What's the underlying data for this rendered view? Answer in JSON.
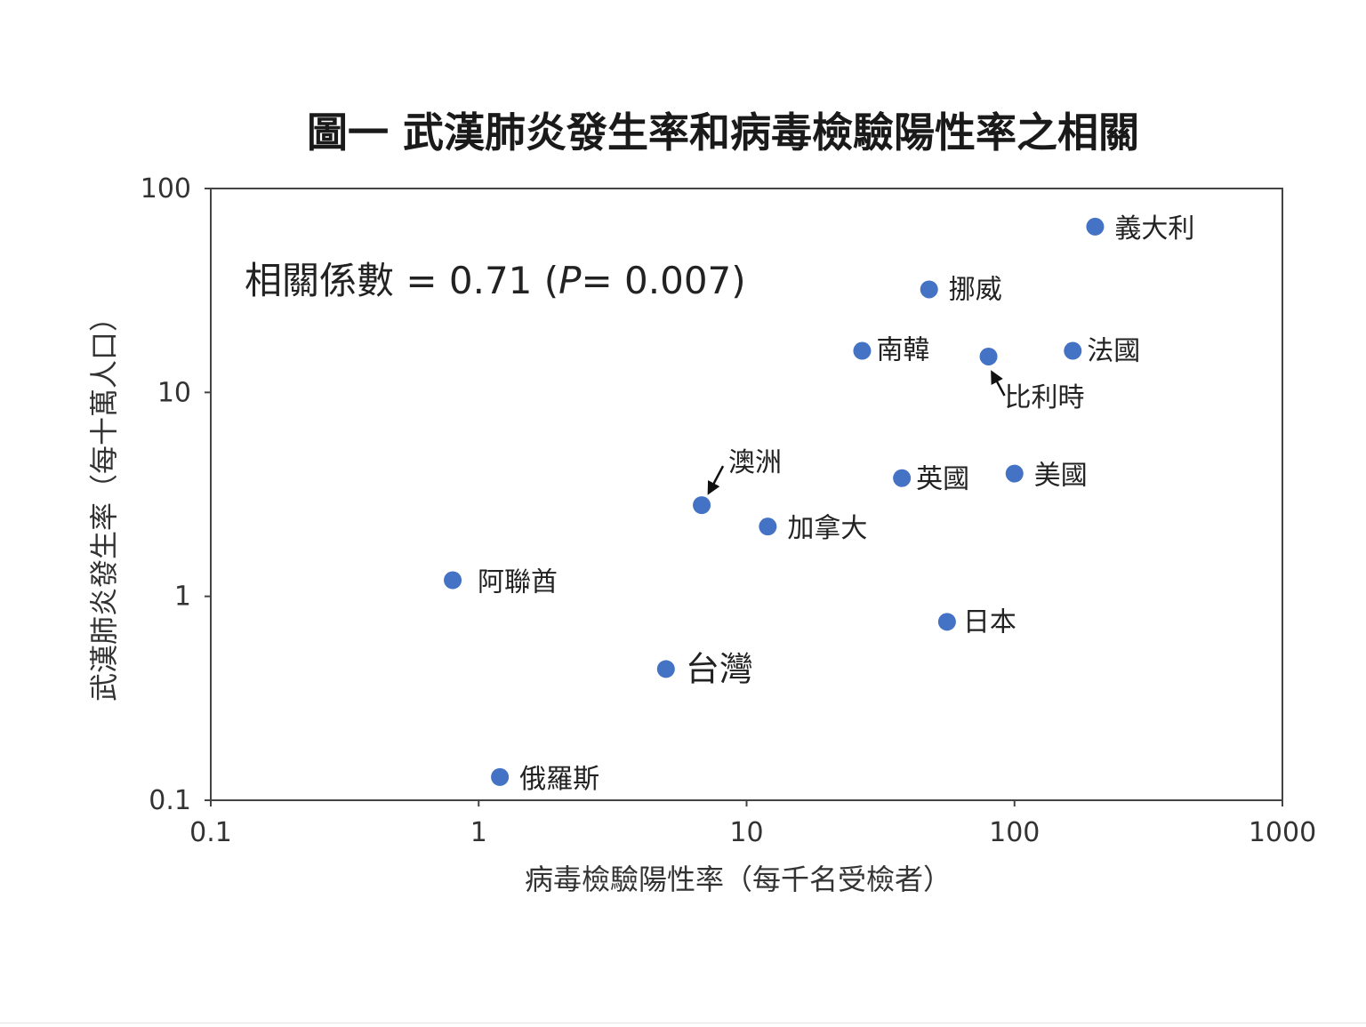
{
  "chart_data": {
    "type": "scatter",
    "title": "圖一  武漢肺炎發生率和病毒檢驗陽性率之相關",
    "xlabel": "病毒檢驗陽性率（每千名受檢者）",
    "ylabel": "武漢肺炎發生率（每十萬人口）",
    "x_scale": "log",
    "y_scale": "log",
    "xlim": [
      0.1,
      1000
    ],
    "ylim": [
      0.1,
      100
    ],
    "x_ticks": [
      "0.1",
      "1",
      "10",
      "100",
      "1000"
    ],
    "y_ticks": [
      "0.1",
      "1",
      "10",
      "100"
    ],
    "annotation": {
      "prefix": "相關係數 = 0.71 (",
      "p_symbol": "P",
      "suffix": "= 0.007)"
    },
    "marker_color": "#4472c4",
    "points": [
      {
        "label": "義大利",
        "x": 200,
        "y": 65
      },
      {
        "label": "挪威",
        "x": 48,
        "y": 32
      },
      {
        "label": "南韓",
        "x": 27,
        "y": 16
      },
      {
        "label": "比利時",
        "x": 80,
        "y": 15
      },
      {
        "label": "法國",
        "x": 165,
        "y": 16
      },
      {
        "label": "澳洲",
        "x": 6.8,
        "y": 2.8
      },
      {
        "label": "英國",
        "x": 38,
        "y": 3.8
      },
      {
        "label": "美國",
        "x": 100,
        "y": 4.0
      },
      {
        "label": "加拿大",
        "x": 12,
        "y": 2.2
      },
      {
        "label": "阿聯酋",
        "x": 0.8,
        "y": 1.2
      },
      {
        "label": "日本",
        "x": 56,
        "y": 0.75
      },
      {
        "label": "台灣",
        "x": 5.0,
        "y": 0.44
      },
      {
        "label": "俄羅斯",
        "x": 1.2,
        "y": 0.13
      }
    ]
  }
}
